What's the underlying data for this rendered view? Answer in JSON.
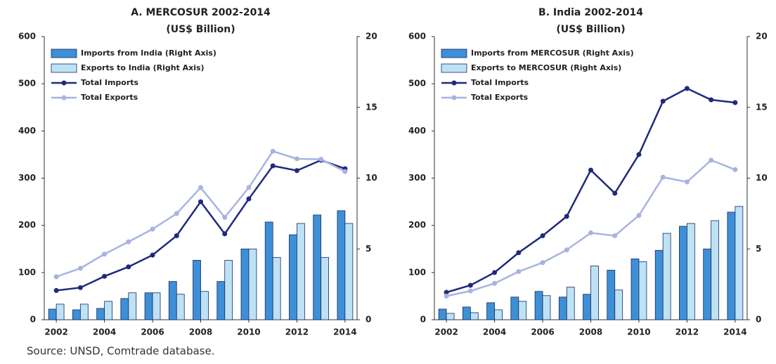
{
  "chart_data": [
    {
      "type": "combo",
      "title": "A. MERCOSUR 2002-2014",
      "subtitle": "(US$ Billion)",
      "x": [
        2002,
        2003,
        2004,
        2005,
        2006,
        2007,
        2008,
        2009,
        2010,
        2011,
        2012,
        2013,
        2014
      ],
      "xlim": [
        2001.5,
        2014.5
      ],
      "xticks": [
        2002,
        2004,
        2006,
        2008,
        2010,
        2012,
        2014
      ],
      "ylim": [
        0,
        600
      ],
      "yticks": [
        0,
        100,
        200,
        300,
        400,
        500,
        600
      ],
      "y2lim": [
        0,
        20
      ],
      "y2ticks": [
        0,
        5,
        10,
        15,
        20
      ],
      "legend": "upper left",
      "series": [
        {
          "name": "Imports from India (Right Axis)",
          "kind": "bar",
          "axis": "y2",
          "color": "#3d8fd8",
          "values": [
            0.75,
            0.7,
            0.8,
            1.5,
            1.9,
            2.7,
            4.2,
            2.7,
            5.0,
            6.9,
            6.0,
            7.4,
            7.7
          ]
        },
        {
          "name": "Exports to India (Right Axis)",
          "kind": "bar",
          "axis": "y2",
          "color": "#bde2f5",
          "values": [
            1.1,
            1.1,
            1.3,
            1.9,
            1.9,
            1.8,
            2.0,
            4.2,
            5.0,
            4.4,
            6.8,
            4.4,
            6.8
          ]
        },
        {
          "name": "Total Imports",
          "kind": "line",
          "color": "#1f2a7c",
          "values": [
            62,
            68,
            92,
            112,
            137,
            178,
            250,
            182,
            256,
            326,
            316,
            338,
            320
          ]
        },
        {
          "name": "Total Exports",
          "kind": "line",
          "color": "#a8b3e0",
          "values": [
            91,
            109,
            139,
            165,
            192,
            225,
            280,
            217,
            280,
            357,
            341,
            340,
            314
          ]
        }
      ]
    },
    {
      "type": "combo",
      "title": "B. India 2002-2014",
      "subtitle": "(US$ Billion)",
      "x": [
        2002,
        2003,
        2004,
        2005,
        2006,
        2007,
        2008,
        2009,
        2010,
        2011,
        2012,
        2013,
        2014
      ],
      "xlim": [
        2001.5,
        2014.5
      ],
      "xticks": [
        2002,
        2004,
        2006,
        2008,
        2010,
        2012,
        2014
      ],
      "ylim": [
        0,
        600
      ],
      "yticks": [
        0,
        100,
        200,
        300,
        400,
        500,
        600
      ],
      "y2lim": [
        0,
        20
      ],
      "y2ticks": [
        0,
        5,
        10,
        15,
        20
      ],
      "legend": "upper left",
      "series": [
        {
          "name": "Imports from MERCOSUR (Right Axis)",
          "kind": "bar",
          "axis": "y2",
          "color": "#3d8fd8",
          "values": [
            0.75,
            0.9,
            1.2,
            1.6,
            2.0,
            1.6,
            1.8,
            3.5,
            4.3,
            4.9,
            6.6,
            5.0,
            7.6
          ]
        },
        {
          "name": "Exports to MERCOSUR (Right Axis)",
          "kind": "bar",
          "axis": "y2",
          "color": "#bde2f5",
          "values": [
            0.45,
            0.5,
            0.7,
            1.3,
            1.7,
            2.3,
            3.8,
            2.1,
            4.1,
            6.1,
            6.8,
            7.0,
            8.0
          ]
        },
        {
          "name": "Total Imports",
          "kind": "line",
          "color": "#1f2a7c",
          "values": [
            58,
            73,
            100,
            142,
            178,
            219,
            317,
            268,
            350,
            463,
            490,
            466,
            460
          ]
        },
        {
          "name": "Total Exports",
          "kind": "line",
          "color": "#a8b3e0",
          "values": [
            50,
            61,
            77,
            102,
            121,
            148,
            184,
            178,
            221,
            302,
            292,
            338,
            318
          ]
        }
      ]
    }
  ],
  "source": "Source: UNSD, Comtrade database."
}
